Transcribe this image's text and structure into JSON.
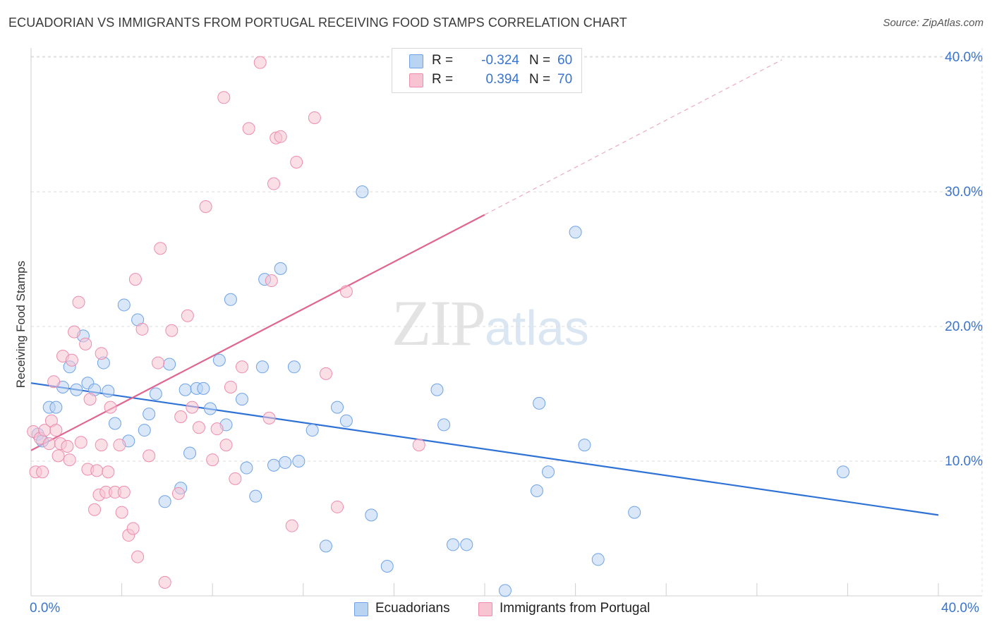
{
  "title": "ECUADORIAN VS IMMIGRANTS FROM PORTUGAL RECEIVING FOOD STAMPS CORRELATION CHART",
  "source": "Source: ZipAtlas.com",
  "watermark": {
    "zip": "ZIP",
    "atlas": "atlas"
  },
  "legend": {
    "rows": [
      {
        "r_label": "R =",
        "r_value": "-0.324",
        "n_label": "N =",
        "n_value": "60",
        "color": "#a9c8ef"
      },
      {
        "r_label": "R =",
        "r_value": "0.394",
        "n_label": "N =",
        "n_value": "70",
        "color": "#f5b8cb"
      }
    ]
  },
  "bottom_legend": [
    "Ecuadorians",
    "Immigrants from Portugal"
  ],
  "chart_data": {
    "type": "scatter",
    "title": "ECUADORIAN VS IMMIGRANTS FROM PORTUGAL RECEIVING FOOD STAMPS CORRELATION CHART",
    "xlabel": "",
    "ylabel": "Receiving Food Stamps",
    "xlim": [
      0,
      40
    ],
    "ylim": [
      0,
      40
    ],
    "x_tick_labels": [
      "0.0%",
      "40.0%"
    ],
    "y_tick_labels": [
      "10.0%",
      "20.0%",
      "30.0%",
      "40.0%"
    ],
    "y_ticks": [
      10,
      20,
      30,
      40
    ],
    "grid": true,
    "legend_position": "top-center",
    "series": [
      {
        "name": "Ecuadorians",
        "color": "#6fa3e6",
        "fill": "#b9d3f3",
        "trend": {
          "x": [
            0,
            40
          ],
          "y": [
            15.8,
            6.0
          ]
        },
        "points": [
          [
            0.3,
            12.0
          ],
          [
            0.5,
            11.5
          ],
          [
            0.8,
            14.0
          ],
          [
            1.1,
            14.0
          ],
          [
            1.4,
            15.5
          ],
          [
            1.7,
            17.0
          ],
          [
            2.0,
            15.3
          ],
          [
            2.3,
            19.3
          ],
          [
            2.5,
            15.8
          ],
          [
            2.8,
            15.3
          ],
          [
            3.2,
            17.3
          ],
          [
            3.4,
            15.2
          ],
          [
            3.7,
            12.8
          ],
          [
            4.1,
            21.6
          ],
          [
            4.3,
            11.5
          ],
          [
            4.7,
            20.5
          ],
          [
            5.0,
            12.3
          ],
          [
            5.2,
            13.5
          ],
          [
            5.5,
            15.0
          ],
          [
            5.9,
            7.0
          ],
          [
            6.1,
            17.2
          ],
          [
            6.6,
            8.0
          ],
          [
            6.8,
            15.3
          ],
          [
            7.0,
            10.6
          ],
          [
            7.3,
            15.4
          ],
          [
            7.6,
            15.4
          ],
          [
            7.9,
            13.9
          ],
          [
            8.3,
            17.5
          ],
          [
            8.6,
            12.7
          ],
          [
            8.8,
            22.0
          ],
          [
            9.3,
            14.6
          ],
          [
            9.5,
            9.5
          ],
          [
            9.9,
            7.4
          ],
          [
            10.2,
            17.0
          ],
          [
            10.3,
            23.5
          ],
          [
            10.7,
            9.7
          ],
          [
            11.0,
            24.3
          ],
          [
            11.2,
            9.9
          ],
          [
            11.6,
            17.0
          ],
          [
            11.8,
            10.0
          ],
          [
            12.4,
            12.3
          ],
          [
            13.0,
            3.7
          ],
          [
            13.5,
            14.0
          ],
          [
            13.9,
            13.0
          ],
          [
            14.6,
            30.0
          ],
          [
            15.0,
            6.0
          ],
          [
            15.7,
            2.2
          ],
          [
            17.9,
            15.3
          ],
          [
            18.2,
            12.7
          ],
          [
            18.6,
            3.8
          ],
          [
            19.2,
            3.8
          ],
          [
            20.9,
            0.4
          ],
          [
            22.3,
            7.8
          ],
          [
            22.4,
            14.3
          ],
          [
            22.8,
            9.2
          ],
          [
            24.0,
            27.0
          ],
          [
            24.4,
            11.2
          ],
          [
            25.0,
            2.7
          ],
          [
            26.6,
            6.2
          ],
          [
            35.8,
            9.2
          ]
        ]
      },
      {
        "name": "Immigrants from Portugal",
        "color": "#ee8cad",
        "fill": "#f8c4d3",
        "trend": {
          "x": [
            0,
            20
          ],
          "y": [
            10.8,
            28.3
          ]
        },
        "trend_extension": {
          "x": [
            20,
            33.1
          ],
          "y": [
            28.3,
            39.8
          ]
        },
        "points": [
          [
            0.1,
            12.2
          ],
          [
            0.2,
            9.2
          ],
          [
            0.4,
            11.7
          ],
          [
            0.5,
            9.2
          ],
          [
            0.6,
            12.3
          ],
          [
            0.8,
            11.3
          ],
          [
            0.9,
            13.0
          ],
          [
            1.0,
            15.9
          ],
          [
            1.1,
            12.3
          ],
          [
            1.3,
            11.3
          ],
          [
            1.4,
            17.8
          ],
          [
            1.6,
            11.1
          ],
          [
            1.7,
            10.1
          ],
          [
            1.8,
            17.5
          ],
          [
            1.9,
            19.6
          ],
          [
            2.1,
            21.8
          ],
          [
            2.2,
            11.4
          ],
          [
            2.4,
            18.7
          ],
          [
            2.5,
            9.4
          ],
          [
            2.6,
            14.6
          ],
          [
            2.8,
            6.4
          ],
          [
            2.9,
            9.3
          ],
          [
            3.0,
            7.5
          ],
          [
            3.1,
            18.0
          ],
          [
            3.3,
            7.7
          ],
          [
            3.4,
            9.2
          ],
          [
            3.5,
            14.0
          ],
          [
            3.7,
            7.7
          ],
          [
            3.9,
            11.2
          ],
          [
            4.0,
            6.2
          ],
          [
            4.1,
            7.7
          ],
          [
            4.3,
            4.5
          ],
          [
            4.5,
            5.0
          ],
          [
            4.6,
            23.5
          ],
          [
            4.7,
            2.9
          ],
          [
            4.9,
            19.8
          ],
          [
            5.2,
            10.4
          ],
          [
            5.6,
            17.3
          ],
          [
            5.7,
            25.8
          ],
          [
            5.9,
            1.0
          ],
          [
            6.2,
            19.7
          ],
          [
            6.5,
            7.6
          ],
          [
            6.6,
            13.3
          ],
          [
            6.9,
            20.8
          ],
          [
            7.1,
            14.0
          ],
          [
            7.4,
            12.5
          ],
          [
            7.7,
            28.9
          ],
          [
            8.0,
            10.1
          ],
          [
            8.2,
            12.4
          ],
          [
            8.5,
            37.0
          ],
          [
            8.6,
            11.2
          ],
          [
            8.8,
            15.5
          ],
          [
            9.0,
            8.7
          ],
          [
            9.3,
            17.0
          ],
          [
            9.6,
            34.7
          ],
          [
            10.1,
            39.6
          ],
          [
            10.5,
            13.2
          ],
          [
            10.6,
            23.4
          ],
          [
            10.7,
            30.6
          ],
          [
            10.8,
            34.0
          ],
          [
            11.0,
            34.1
          ],
          [
            11.5,
            5.2
          ],
          [
            11.7,
            32.2
          ],
          [
            12.5,
            35.5
          ],
          [
            13.0,
            16.5
          ],
          [
            13.5,
            6.6
          ],
          [
            13.9,
            22.6
          ],
          [
            17.1,
            11.2
          ],
          [
            3.1,
            11.2
          ],
          [
            1.2,
            10.4
          ]
        ]
      }
    ]
  }
}
